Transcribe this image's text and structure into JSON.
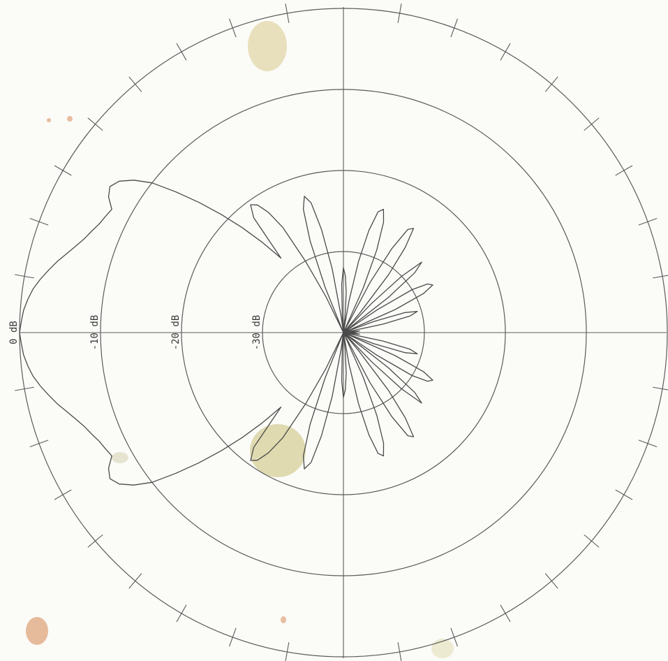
{
  "chart_data": {
    "type": "polar",
    "radial_axis": {
      "unit": "dB",
      "range": [
        -40,
        0
      ],
      "rings": [
        0,
        -10,
        -20,
        -30
      ],
      "ring_labels": [
        "0 dB",
        "-10 dB",
        "-20 dB",
        "-30 dB"
      ]
    },
    "angular_ticks_deg": 10,
    "grid": true,
    "series": [
      {
        "angle_deg": [
          0,
          2,
          4,
          6,
          8,
          10,
          12,
          14,
          16,
          18,
          20,
          22,
          24,
          26,
          28,
          30,
          32,
          34,
          36,
          38,
          40,
          42,
          44,
          46,
          48,
          50,
          52,
          54,
          56,
          58,
          60,
          62,
          64,
          66,
          68,
          70,
          72,
          74,
          76,
          78,
          80,
          82,
          84,
          86,
          88,
          90,
          92,
          94,
          96,
          98,
          100,
          102,
          104,
          106,
          108,
          110,
          112,
          114,
          116,
          118,
          120,
          122,
          124,
          126,
          128,
          130,
          132,
          134,
          136,
          138,
          140,
          142,
          144,
          146,
          148,
          150,
          152,
          154,
          156,
          158,
          160,
          162,
          164,
          166,
          168,
          170,
          172,
          174,
          176,
          178,
          180
        ],
        "gain_db": [
          0,
          -0.2,
          -0.4,
          -0.8,
          -1.3,
          -2,
          -2.8,
          -3.6,
          -4.5,
          -5.3,
          -6,
          -6.5,
          -7,
          -7.3,
          -7.6,
          -6.5,
          -6,
          -6.6,
          -8,
          -10,
          -13,
          -16,
          -19,
          -22,
          -25,
          -28,
          -22,
          -20.5,
          -21,
          -22.5,
          -25,
          -30,
          -35,
          -40,
          -34,
          -28,
          -24,
          -22.5,
          -23.5,
          -27,
          -32,
          -38,
          -40,
          -38,
          -34,
          -32,
          -33,
          -35,
          -38,
          -40,
          -36,
          -31,
          -27,
          -24.5,
          -24,
          -25.5,
          -29,
          -34,
          -40,
          -33,
          -28,
          -25,
          -24.5,
          -27,
          -31,
          -37,
          -40,
          -35,
          -30,
          -27,
          -28.5,
          -33,
          -40,
          -35,
          -30,
          -28,
          -27.5,
          -29,
          -33,
          -40,
          -36,
          -32,
          -30.5,
          -31.5,
          -35,
          -40,
          -39,
          -38,
          -38.5,
          -39.5,
          -40
        ]
      }
    ]
  }
}
